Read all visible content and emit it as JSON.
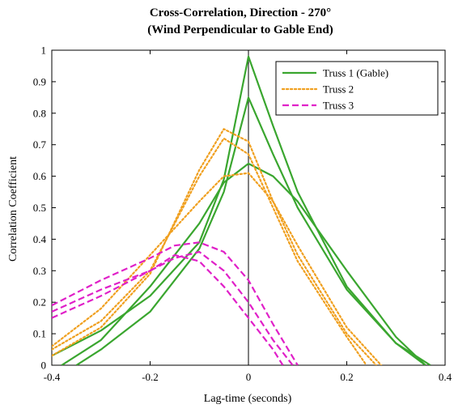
{
  "chart_data": {
    "type": "line",
    "title": "Cross-Correlation, Direction - 270°",
    "subtitle": "(Wind Perpendicular to Gable End)",
    "xlabel": "Lag-time (seconds)",
    "ylabel": "Correlation Coefficient",
    "xlim": [
      -0.4,
      0.4
    ],
    "ylim": [
      0,
      1
    ],
    "xticks": [
      "-0.4",
      "-0.2",
      "0",
      "0.2",
      "0.4"
    ],
    "yticks": [
      "0",
      "0.1",
      "0.2",
      "0.3",
      "0.4",
      "0.5",
      "0.6",
      "0.7",
      "0.8",
      "0.9",
      "1"
    ],
    "grid": false,
    "legend_position": "top-right",
    "series": [
      {
        "name": "Truss 1 (Gable)",
        "color": "#3aa62f",
        "style": "solid",
        "lines": [
          {
            "x": [
              -0.4,
              -0.3,
              -0.2,
              -0.1,
              -0.05,
              0,
              0.05,
              0.1,
              0.2,
              0.3,
              0.36
            ],
            "y": [
              0.03,
              0.11,
              0.22,
              0.39,
              0.59,
              0.98,
              0.76,
              0.55,
              0.25,
              0.07,
              0.0
            ]
          },
          {
            "x": [
              -0.35,
              -0.3,
              -0.2,
              -0.1,
              -0.05,
              0,
              0.05,
              0.1,
              0.2,
              0.3,
              0.37
            ],
            "y": [
              0.0,
              0.05,
              0.17,
              0.37,
              0.55,
              0.85,
              0.67,
              0.5,
              0.24,
              0.07,
              0.0
            ]
          },
          {
            "x": [
              -0.38,
              -0.3,
              -0.2,
              -0.1,
              -0.05,
              0,
              0.05,
              0.1,
              0.2,
              0.3,
              0.36
            ],
            "y": [
              0.0,
              0.08,
              0.25,
              0.45,
              0.58,
              0.64,
              0.6,
              0.52,
              0.3,
              0.09,
              0.0
            ]
          }
        ]
      },
      {
        "name": "Truss 2",
        "color": "#f0a020",
        "style": "dotted",
        "lines": [
          {
            "x": [
              -0.4,
              -0.3,
              -0.2,
              -0.1,
              -0.05,
              0,
              0.05,
              0.1,
              0.2,
              0.24
            ],
            "y": [
              0.05,
              0.14,
              0.3,
              0.6,
              0.72,
              0.67,
              0.5,
              0.33,
              0.09,
              0.0
            ]
          },
          {
            "x": [
              -0.4,
              -0.3,
              -0.2,
              -0.1,
              -0.05,
              0,
              0.05,
              0.1,
              0.2,
              0.26
            ],
            "y": [
              0.03,
              0.12,
              0.29,
              0.62,
              0.75,
              0.71,
              0.52,
              0.35,
              0.1,
              0.0
            ]
          },
          {
            "x": [
              -0.4,
              -0.3,
              -0.2,
              -0.1,
              -0.05,
              0,
              0.05,
              0.1,
              0.2,
              0.27
            ],
            "y": [
              0.06,
              0.18,
              0.35,
              0.52,
              0.6,
              0.61,
              0.52,
              0.38,
              0.12,
              0.0
            ]
          }
        ]
      },
      {
        "name": "Truss 3",
        "color": "#e020c8",
        "style": "dashed",
        "lines": [
          {
            "x": [
              -0.4,
              -0.3,
              -0.2,
              -0.15,
              -0.1,
              -0.05,
              0,
              0.05,
              0.07
            ],
            "y": [
              0.15,
              0.22,
              0.3,
              0.35,
              0.33,
              0.25,
              0.15,
              0.05,
              0.0
            ]
          },
          {
            "x": [
              -0.4,
              -0.3,
              -0.2,
              -0.15,
              -0.1,
              -0.05,
              0,
              0.05,
              0.09
            ],
            "y": [
              0.17,
              0.24,
              0.3,
              0.34,
              0.36,
              0.3,
              0.2,
              0.08,
              0.0
            ]
          },
          {
            "x": [
              -0.4,
              -0.3,
              -0.2,
              -0.15,
              -0.1,
              -0.05,
              0,
              0.05,
              0.1
            ],
            "y": [
              0.19,
              0.27,
              0.34,
              0.38,
              0.39,
              0.36,
              0.27,
              0.13,
              0.0
            ]
          }
        ]
      }
    ]
  }
}
